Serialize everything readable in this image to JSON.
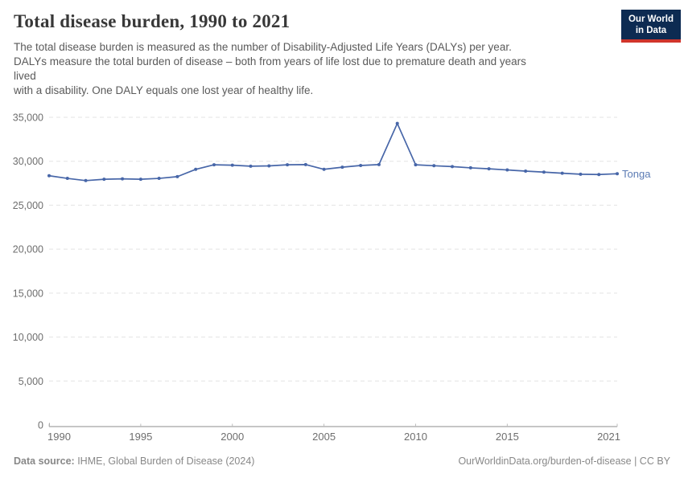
{
  "header": {
    "title": "Total disease burden, 1990 to 2021",
    "subtitle_lines": [
      "The total disease burden is measured as the number of Disability-Adjusted Life Years (DALYs) per year.",
      "DALYs measure the total burden of disease – both from years of life lost due to premature death and years",
      "lived",
      "with a disability. One DALY equals one lost year of healthy life."
    ],
    "logo": {
      "line1": "Our World",
      "line2": "in Data",
      "bg_color": "#0d2b52",
      "accent_color": "#d0352b"
    }
  },
  "chart_data": {
    "type": "line",
    "title": "Total disease burden, 1990 to 2021",
    "x": [
      1990,
      1991,
      1992,
      1993,
      1994,
      1995,
      1996,
      1997,
      1998,
      1999,
      2000,
      2001,
      2002,
      2003,
      2004,
      2005,
      2006,
      2007,
      2008,
      2009,
      2010,
      2011,
      2012,
      2013,
      2014,
      2015,
      2016,
      2017,
      2018,
      2019,
      2020,
      2021
    ],
    "series": [
      {
        "name": "Tonga",
        "color": "#4766a8",
        "label_color": "#5b7bb4",
        "values": [
          28350,
          28050,
          27800,
          27950,
          28000,
          27950,
          28050,
          28250,
          29080,
          29600,
          29550,
          29440,
          29470,
          29600,
          29620,
          29080,
          29320,
          29520,
          29620,
          34300,
          29600,
          29490,
          29390,
          29250,
          29140,
          29010,
          28880,
          28760,
          28640,
          28520,
          28490,
          28580
        ]
      }
    ],
    "xlim": [
      1990,
      2021
    ],
    "ylim": [
      0,
      35000
    ],
    "xticks": [
      1990,
      1995,
      2000,
      2005,
      2010,
      2015,
      2021
    ],
    "yticks": [
      0,
      5000,
      10000,
      15000,
      20000,
      25000,
      30000,
      35000
    ],
    "ytick_labels": [
      "0",
      "5,000",
      "10,000",
      "15,000",
      "20,000",
      "25,000",
      "30,000",
      "35,000"
    ],
    "grid": "horizontal-dashed",
    "legend_position": "end-of-line-label",
    "grid_color": "#e3e3e3",
    "axis_color": "#a3a3a3",
    "tick_color": "#6e6e6e"
  },
  "footer": {
    "source_label": "Data source:",
    "source_text": " IHME, Global Burden of Disease (2024)",
    "right_text": "OurWorldinData.org/burden-of-disease | CC BY"
  }
}
